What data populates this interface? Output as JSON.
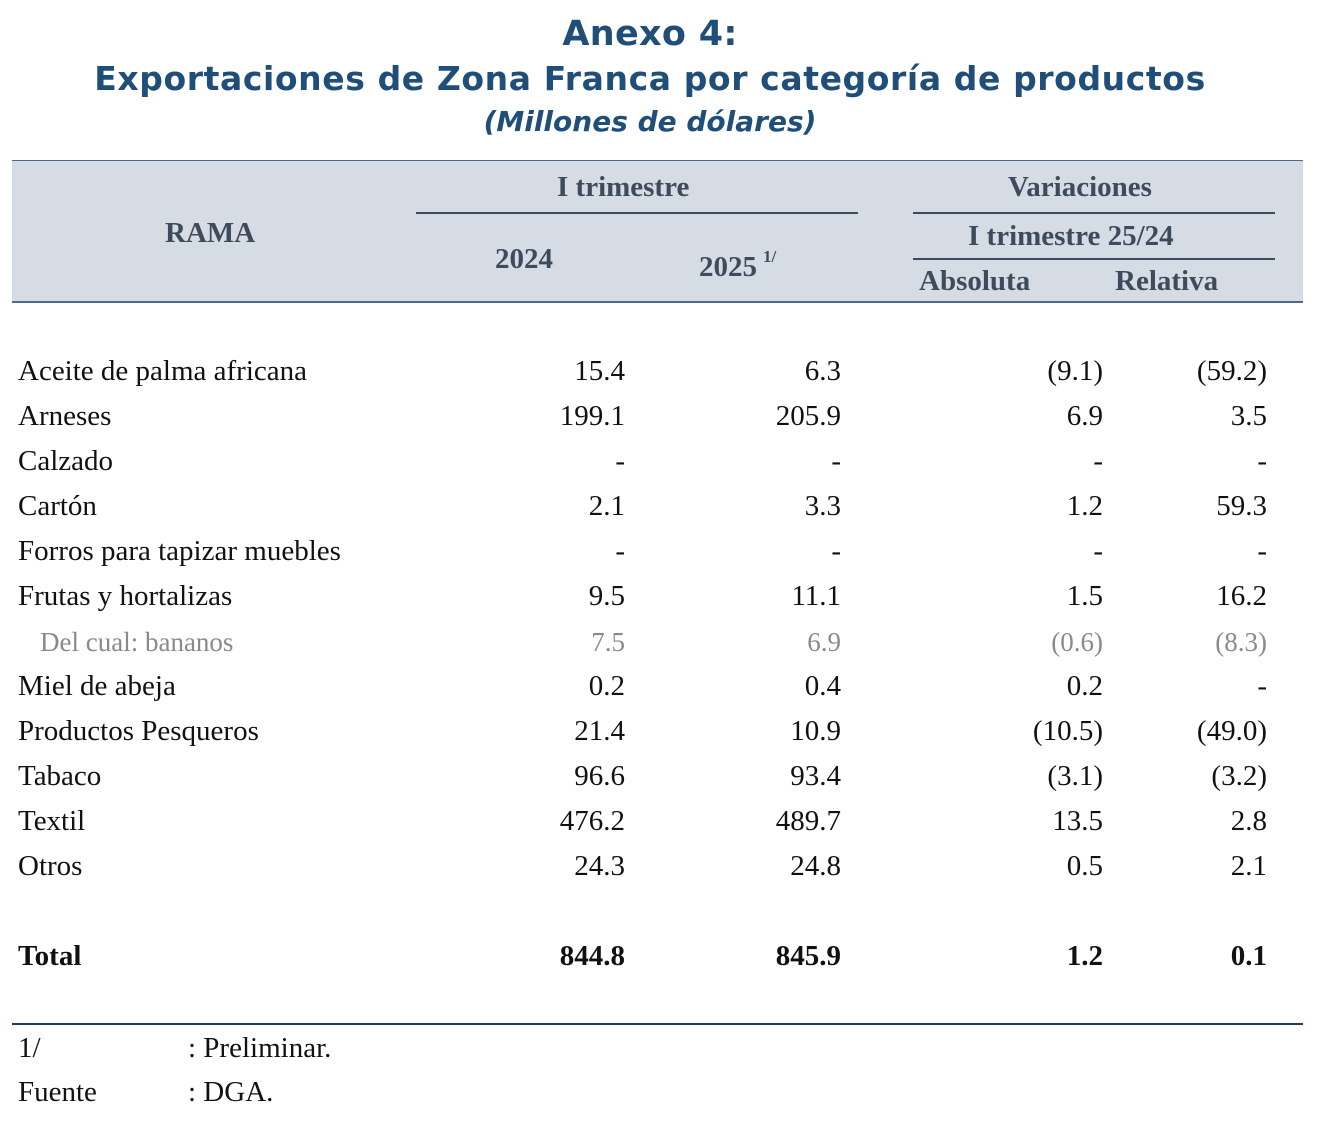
{
  "title": {
    "line1": "Anexo 4:",
    "line2": "Exportaciones de Zona Franca por categoría de productos",
    "line3": "(Millones de dólares)"
  },
  "header": {
    "rama": "RAMA",
    "group1": "I trimestre",
    "year1": "2024",
    "year2": "2025",
    "year2_note": "1/",
    "group2": "Variaciones",
    "subgroup2": "I trimestre 25/24",
    "abs": "Absoluta",
    "rel": "Relativa"
  },
  "rows": [
    {
      "label": "Aceite de palma africana",
      "v2024": "15.4",
      "v2025": "6.3",
      "abs": "(9.1)",
      "rel": "(59.2)"
    },
    {
      "label": "Arneses",
      "v2024": "199.1",
      "v2025": "205.9",
      "abs": "6.9",
      "rel": "3.5"
    },
    {
      "label": "Calzado",
      "v2024": "-",
      "v2025": "-",
      "abs": "-",
      "rel": "-"
    },
    {
      "label": "Cartón",
      "v2024": "2.1",
      "v2025": "3.3",
      "abs": "1.2",
      "rel": "59.3"
    },
    {
      "label": "Forros para tapizar muebles",
      "v2024": "-",
      "v2025": "-",
      "abs": "-",
      "rel": "-"
    },
    {
      "label": "Frutas y hortalizas",
      "v2024": "9.5",
      "v2025": "11.1",
      "abs": "1.5",
      "rel": "16.2"
    },
    {
      "label": "Del cual: bananos",
      "v2024": "7.5",
      "v2025": "6.9",
      "abs": "(0.6)",
      "rel": "(8.3)"
    },
    {
      "label": "Miel de abeja",
      "v2024": "0.2",
      "v2025": "0.4",
      "abs": "0.2",
      "rel": "-"
    },
    {
      "label": "Productos Pesqueros",
      "v2024": "21.4",
      "v2025": "10.9",
      "abs": "(10.5)",
      "rel": "(49.0)"
    },
    {
      "label": "Tabaco",
      "v2024": "96.6",
      "v2025": "93.4",
      "abs": "(3.1)",
      "rel": "(3.2)"
    },
    {
      "label": "Textil",
      "v2024": "476.2",
      "v2025": "489.7",
      "abs": "13.5",
      "rel": "2.8"
    },
    {
      "label": "Otros",
      "v2024": "24.3",
      "v2025": "24.8",
      "abs": "0.5",
      "rel": "2.1"
    }
  ],
  "total": {
    "label": "Total",
    "v2024": "844.8",
    "v2025": "845.9",
    "abs": "1.2",
    "rel": "0.1"
  },
  "notes": [
    {
      "key": "1/",
      "text": ": Preliminar."
    },
    {
      "key": "Fuente",
      "text": ": DGA."
    }
  ]
}
